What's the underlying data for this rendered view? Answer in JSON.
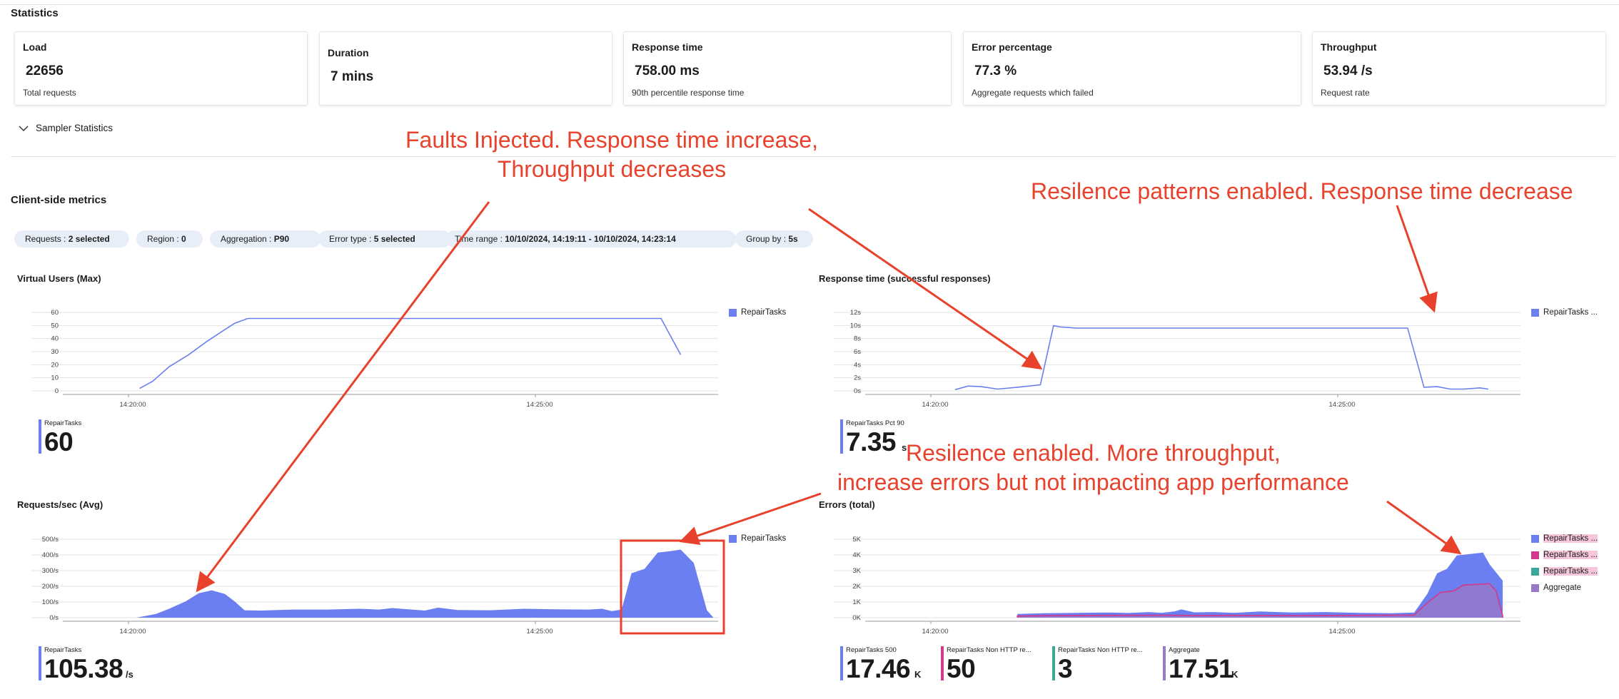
{
  "statistics": {
    "title": "Statistics",
    "cards": [
      {
        "label": "Load",
        "value": "22656",
        "sub": "Total requests"
      },
      {
        "label": "Duration",
        "value": "7 mins",
        "sub": ""
      },
      {
        "label": "Response time",
        "value": "758.00 ms",
        "sub": "90th percentile response time"
      },
      {
        "label": "Error percentage",
        "value": "77.3 %",
        "sub": "Aggregate requests which failed"
      },
      {
        "label": "Throughput",
        "value": "53.94 /s",
        "sub": "Request rate"
      }
    ],
    "sampler_label": "Sampler Statistics"
  },
  "client_metrics": {
    "title": "Client-side metrics",
    "filters": [
      {
        "key": "Requests : ",
        "value": "2 selected"
      },
      {
        "key": "Region : ",
        "value": "0"
      },
      {
        "key": "Aggregation : ",
        "value": "P90"
      },
      {
        "key": "Error type : ",
        "value": "5 selected"
      },
      {
        "key": "Time range : ",
        "value": "10/10/2024, 14:19:11 - 10/10/2024, 14:23:14"
      },
      {
        "key": "Group by : ",
        "value": "5s"
      }
    ]
  },
  "colors": {
    "accent": "#6b7ff0",
    "series_magenta": "#d4388a",
    "series_teal": "#3ba89b",
    "series_purple": "#9a78c8",
    "annotation": "#e8412c"
  },
  "icons": [
    "chevron-down-icon"
  ],
  "charts": {
    "virtual_users": {
      "title": "Virtual Users (Max)",
      "legend": [
        "RepairTasks"
      ],
      "metric": {
        "label": "RepairTasks",
        "value": "60",
        "unit": ""
      }
    },
    "response_time": {
      "title": "Response time (successful responses)",
      "legend": [
        "RepairTasks ..."
      ],
      "metric": {
        "label": "RepairTasks Pct 90",
        "value": "7.35",
        "unit": "s"
      }
    },
    "requests_sec": {
      "title": "Requests/sec (Avg)",
      "legend": [
        "RepairTasks"
      ],
      "metric": {
        "label": "RepairTasks",
        "value": "105.38",
        "unit": "/s"
      }
    },
    "errors": {
      "title": "Errors (total)",
      "legend": [
        "RepairTasks ...",
        "RepairTasks ...",
        "RepairTasks ...",
        "Aggregate"
      ],
      "metrics": [
        {
          "label": "RepairTasks 500",
          "value": "17.46",
          "unit": "K"
        },
        {
          "label": "RepairTasks Non HTTP re...",
          "value": "50",
          "unit": ""
        },
        {
          "label": "RepairTasks Non HTTP re...",
          "value": "3",
          "unit": ""
        },
        {
          "label": "Aggregate",
          "value": "17.51",
          "unit": "K"
        }
      ]
    }
  },
  "chart_data": [
    {
      "type": "line",
      "title": "Virtual Users (Max)",
      "xticks": [
        "14:20:00",
        "14:25:00"
      ],
      "yticks": [
        "0",
        "10",
        "20",
        "30",
        "40",
        "50",
        "60"
      ],
      "ylim": [
        0,
        65
      ],
      "series": [
        {
          "name": "RepairTasks",
          "points": [
            [
              0.165,
              2
            ],
            [
              0.185,
              8
            ],
            [
              0.21,
              20
            ],
            [
              0.24,
              30
            ],
            [
              0.265,
              40
            ],
            [
              0.29,
              49
            ],
            [
              0.31,
              56
            ],
            [
              0.33,
              60
            ],
            [
              0.96,
              60
            ],
            [
              0.975,
              45
            ],
            [
              0.99,
              30
            ]
          ]
        }
      ]
    },
    {
      "type": "line",
      "title": "Response time (successful responses)",
      "xticks": [
        "14:20:00",
        "14:25:00"
      ],
      "yticks": [
        "0s",
        "2s",
        "4s",
        "6s",
        "8s",
        "10s",
        "12s"
      ],
      "ylim": [
        0,
        13
      ],
      "series": [
        {
          "name": "RepairTasks ...",
          "points": [
            [
              0.185,
              0.2
            ],
            [
              0.205,
              0.8
            ],
            [
              0.225,
              0.7
            ],
            [
              0.25,
              0.3
            ],
            [
              0.28,
              0.6
            ],
            [
              0.315,
              1
            ],
            [
              0.335,
              10.8
            ],
            [
              0.345,
              10.6
            ],
            [
              0.37,
              10.4
            ],
            [
              0.6,
              10.4
            ],
            [
              0.84,
              10.4
            ],
            [
              0.875,
              10.4
            ],
            [
              0.9,
              0.6
            ],
            [
              0.92,
              0.7
            ],
            [
              0.94,
              0.3
            ],
            [
              0.96,
              0.3
            ],
            [
              0.975,
              0.4
            ],
            [
              0.985,
              0.5
            ],
            [
              0.998,
              0.3
            ]
          ]
        }
      ]
    },
    {
      "type": "area",
      "title": "Requests/sec (Avg)",
      "xticks": [
        "14:20:00",
        "14:25:00"
      ],
      "yticks": [
        "0/s",
        "100/s",
        "200/s",
        "300/s",
        "400/s",
        "500/s"
      ],
      "ylim": [
        0,
        530
      ],
      "series": [
        {
          "name": "RepairTasks",
          "points": [
            [
              0.16,
              0
            ],
            [
              0.19,
              25
            ],
            [
              0.21,
              60
            ],
            [
              0.235,
              110
            ],
            [
              0.255,
              165
            ],
            [
              0.275,
              185
            ],
            [
              0.295,
              160
            ],
            [
              0.31,
              110
            ],
            [
              0.325,
              50
            ],
            [
              0.35,
              48
            ],
            [
              0.4,
              55
            ],
            [
              0.45,
              55
            ],
            [
              0.5,
              60
            ],
            [
              0.53,
              55
            ],
            [
              0.55,
              65
            ],
            [
              0.58,
              55
            ],
            [
              0.6,
              48
            ],
            [
              0.62,
              68
            ],
            [
              0.65,
              52
            ],
            [
              0.7,
              50
            ],
            [
              0.75,
              60
            ],
            [
              0.8,
              57
            ],
            [
              0.85,
              55
            ],
            [
              0.87,
              60
            ],
            [
              0.885,
              45
            ],
            [
              0.9,
              55
            ],
            [
              0.915,
              300
            ],
            [
              0.935,
              330
            ],
            [
              0.955,
              440
            ],
            [
              0.975,
              450
            ],
            [
              0.99,
              460
            ],
            [
              1.01,
              370
            ],
            [
              1.03,
              50
            ],
            [
              1.04,
              0
            ]
          ]
        }
      ]
    },
    {
      "type": "area",
      "title": "Errors (total)",
      "xticks": [
        "14:20:00",
        "14:25:00"
      ],
      "yticks": [
        "0K",
        "1K",
        "2K",
        "3K",
        "4K",
        "5K"
      ],
      "ylim": [
        0,
        5300
      ],
      "series": [
        {
          "name": "RepairTasks ...",
          "points": [
            [
              0.28,
              0
            ],
            [
              0.28,
              250
            ],
            [
              0.32,
              300
            ],
            [
              0.37,
              330
            ],
            [
              0.42,
              350
            ],
            [
              0.45,
              320
            ],
            [
              0.48,
              380
            ],
            [
              0.5,
              330
            ],
            [
              0.52,
              430
            ],
            [
              0.53,
              560
            ],
            [
              0.55,
              360
            ],
            [
              0.58,
              380
            ],
            [
              0.61,
              330
            ],
            [
              0.65,
              420
            ],
            [
              0.7,
              350
            ],
            [
              0.75,
              380
            ],
            [
              0.8,
              330
            ],
            [
              0.85,
              300
            ],
            [
              0.885,
              350
            ],
            [
              0.905,
              1600
            ],
            [
              0.92,
              3000
            ],
            [
              0.935,
              3300
            ],
            [
              0.95,
              4200
            ],
            [
              0.97,
              4300
            ],
            [
              0.99,
              4400
            ],
            [
              1.0,
              3600
            ],
            [
              1.02,
              2500
            ],
            [
              1.02,
              0
            ]
          ]
        },
        {
          "name": "RepairTasks ...",
          "points": []
        },
        {
          "name": "RepairTasks ...",
          "points": []
        },
        {
          "name": "Aggregate",
          "points": [
            [
              0.28,
              0
            ],
            [
              0.28,
              110
            ],
            [
              0.35,
              150
            ],
            [
              0.42,
              160
            ],
            [
              0.5,
              170
            ],
            [
              0.55,
              150
            ],
            [
              0.6,
              160
            ],
            [
              0.7,
              150
            ],
            [
              0.8,
              160
            ],
            [
              0.885,
              180
            ],
            [
              0.905,
              1000
            ],
            [
              0.925,
              1700
            ],
            [
              0.945,
              1800
            ],
            [
              0.96,
              2200
            ],
            [
              0.98,
              2250
            ],
            [
              1.0,
              2300
            ],
            [
              1.01,
              1800
            ],
            [
              1.02,
              100
            ],
            [
              1.02,
              0
            ]
          ]
        }
      ]
    }
  ],
  "annotations": [
    {
      "lines": [
        "Faults Injected. Response time increase,",
        "Throughput decreases"
      ]
    },
    {
      "lines": [
        "Resilence patterns enabled. Response time decrease"
      ]
    },
    {
      "lines": [
        "Resilence enabled. More throughput,",
        "increase errors but not impacting app performance"
      ]
    }
  ]
}
